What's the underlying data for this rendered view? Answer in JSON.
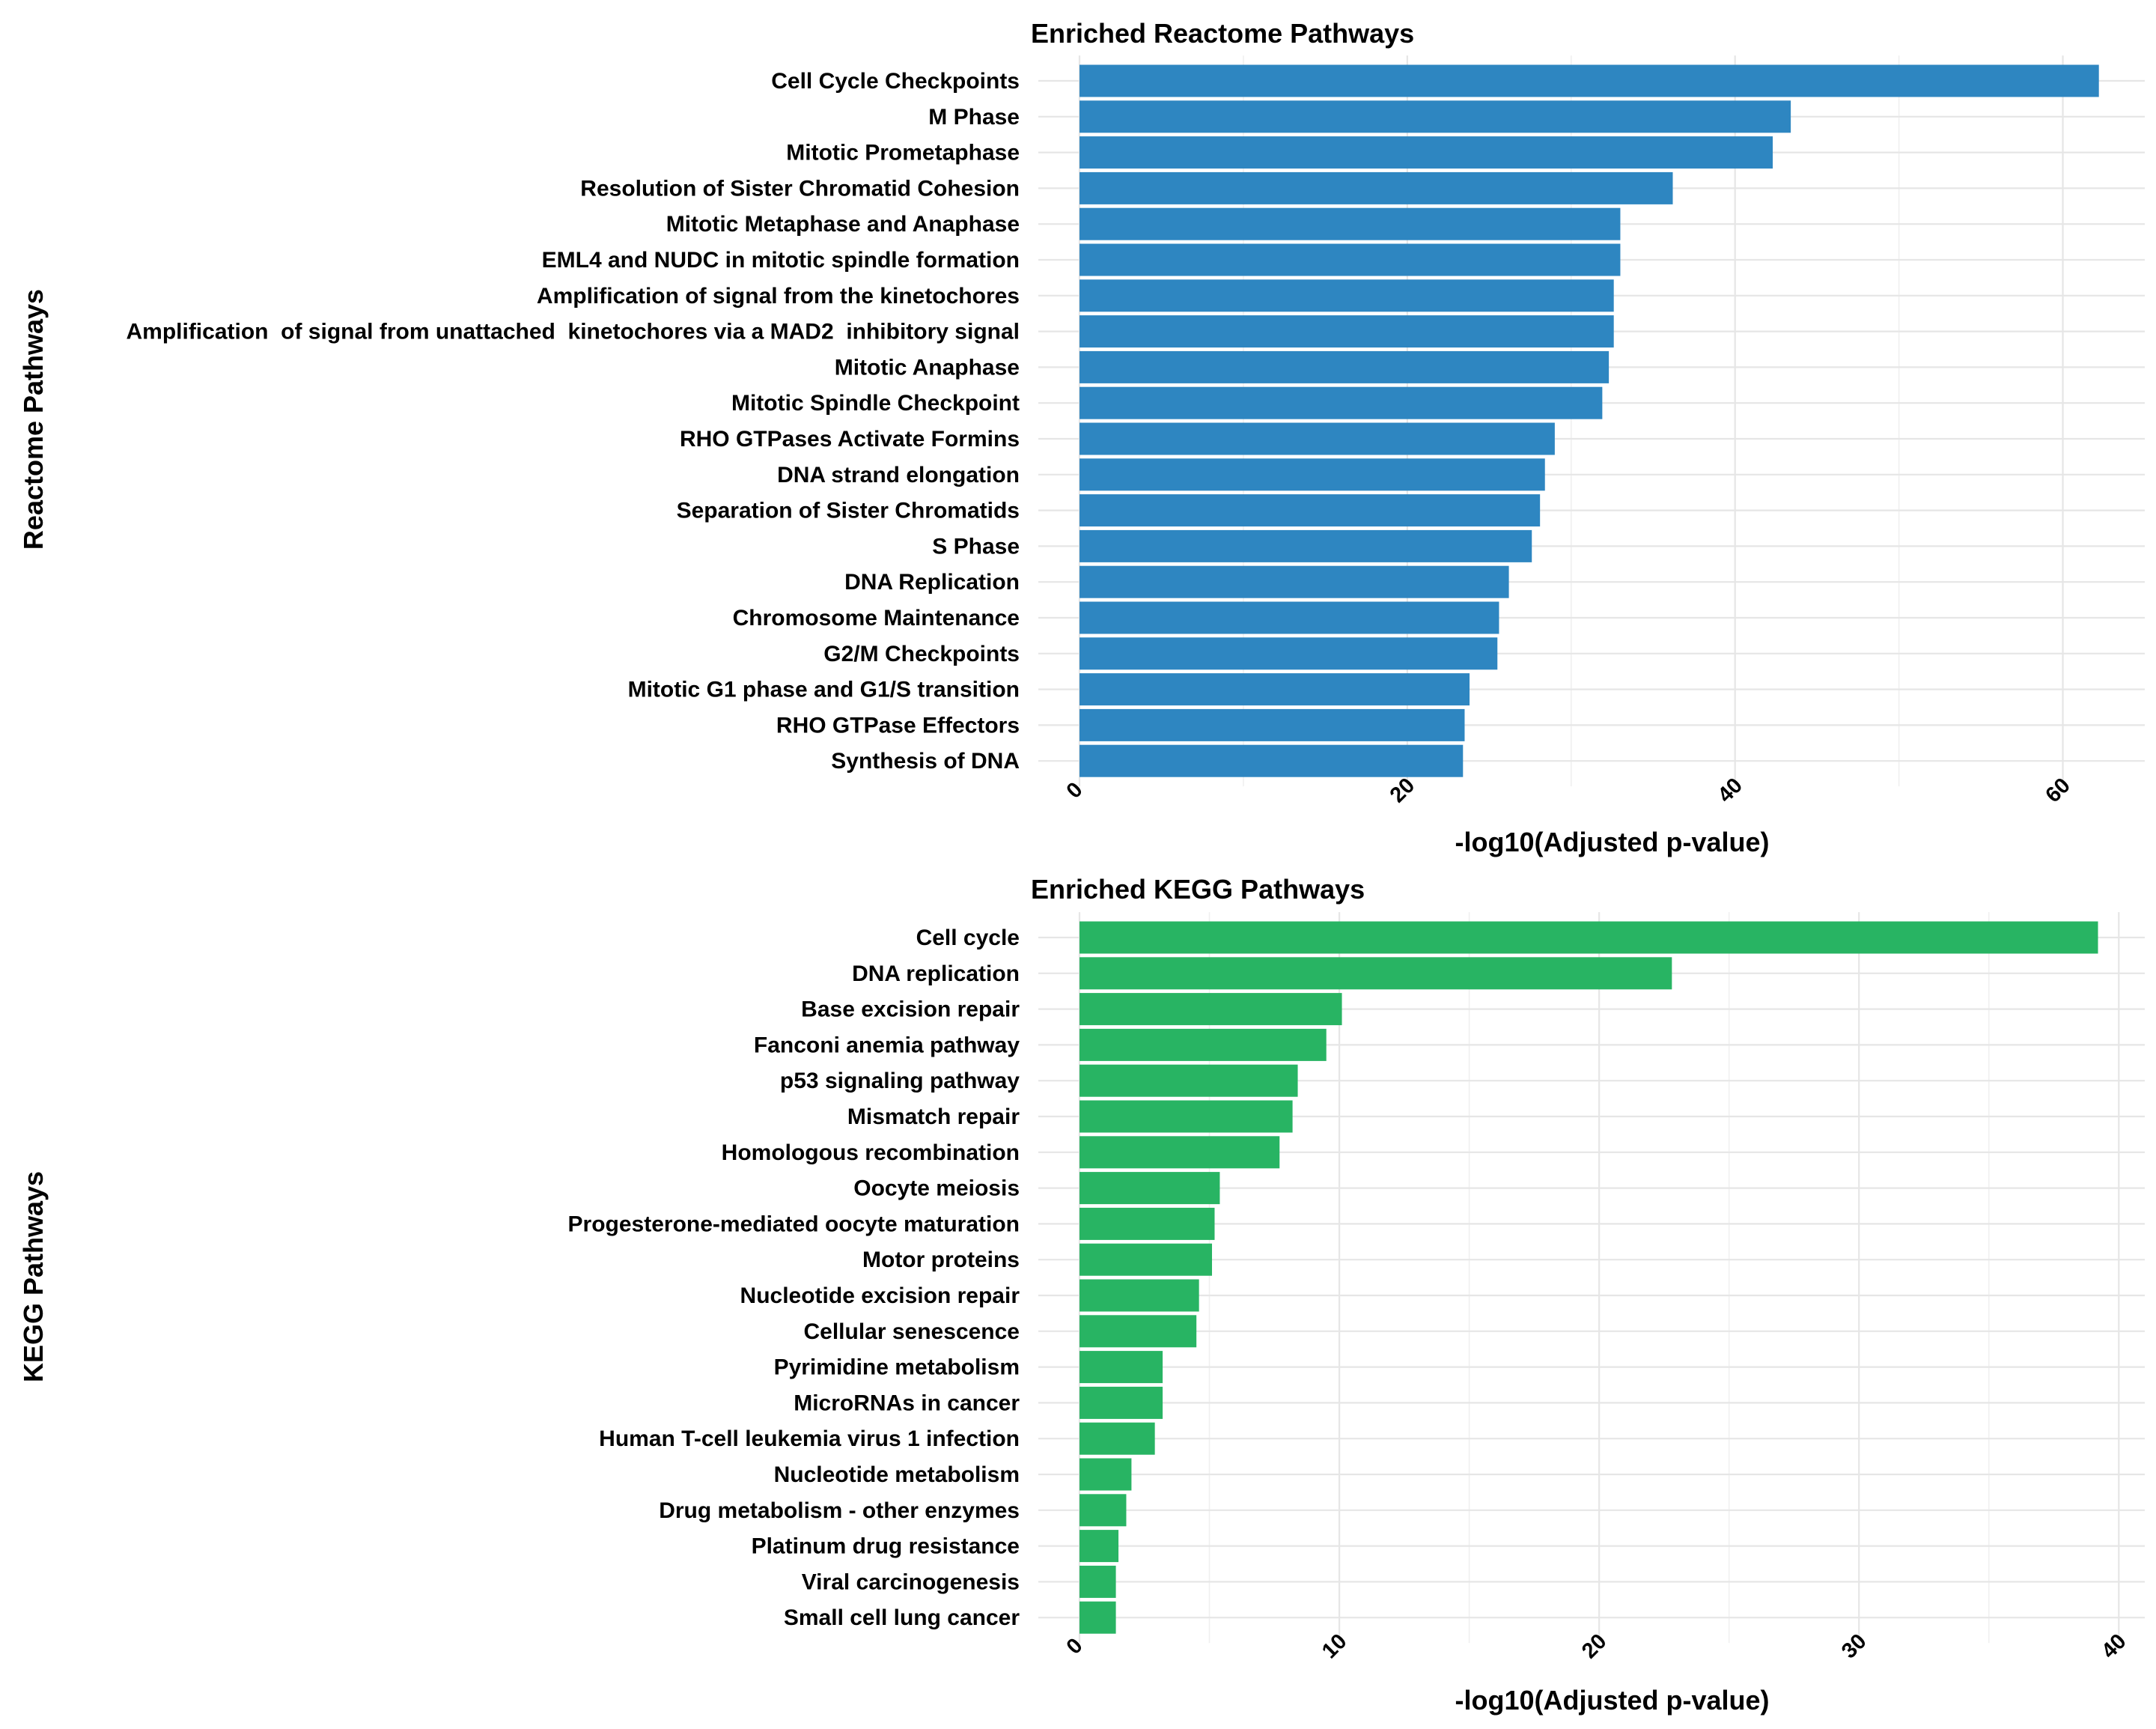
{
  "chart_data": [
    {
      "type": "bar",
      "orientation": "horizontal",
      "title": "Enriched Reactome Pathways",
      "xlabel": "-log10(Adjusted p-value)",
      "ylabel": "Reactome Pathways",
      "xlim": [
        0,
        65
      ],
      "xticks": [
        0,
        20,
        40,
        60
      ],
      "grid": true,
      "color": "#2e86c1",
      "categories": [
        "Cell Cycle Checkpoints",
        "M Phase",
        "Mitotic Prometaphase",
        "Resolution of Sister Chromatid Cohesion",
        "Mitotic Metaphase and Anaphase",
        "EML4 and NUDC in mitotic spindle formation",
        "Amplification of signal from the kinetochores",
        "Amplification  of signal from unattached  kinetochores via a MAD2  inhibitory signal",
        "Mitotic Anaphase",
        "Mitotic Spindle Checkpoint",
        "RHO GTPases Activate Formins",
        "DNA strand elongation",
        "Separation of Sister Chromatids",
        "S Phase",
        "DNA Replication",
        "Chromosome Maintenance",
        "G2/M Checkpoints",
        "Mitotic G1 phase and G1/S transition",
        "RHO GTPase Effectors",
        "Synthesis of DNA"
      ],
      "values": [
        62.2,
        43.4,
        42.3,
        36.2,
        33.0,
        33.0,
        32.6,
        32.6,
        32.3,
        31.9,
        29.0,
        28.4,
        28.1,
        27.6,
        26.2,
        25.6,
        25.5,
        23.8,
        23.5,
        23.4
      ]
    },
    {
      "type": "bar",
      "orientation": "horizontal",
      "title": "Enriched KEGG Pathways",
      "xlabel": "-log10(Adjusted p-value)",
      "ylabel": "KEGG Pathways",
      "xlim": [
        0,
        41
      ],
      "xticks": [
        0,
        10,
        20,
        30,
        40
      ],
      "grid": true,
      "color": "#28b463",
      "categories": [
        "Cell cycle",
        "DNA replication",
        "Base excision repair",
        "Fanconi anemia pathway",
        "p53 signaling pathway",
        "Mismatch repair",
        "Homologous recombination",
        "Oocyte meiosis",
        "Progesterone-mediated oocyte maturation",
        "Motor proteins",
        "Nucleotide excision repair",
        "Cellular senescence",
        "Pyrimidine metabolism",
        "MicroRNAs in cancer",
        "Human T-cell leukemia virus 1 infection",
        "Nucleotide metabolism",
        "Drug metabolism - other enzymes",
        "Platinum drug resistance",
        "Viral carcinogenesis",
        "Small cell lung cancer"
      ],
      "values": [
        39.2,
        22.8,
        10.1,
        9.5,
        8.4,
        8.2,
        7.7,
        5.4,
        5.2,
        5.1,
        4.6,
        4.5,
        3.2,
        3.2,
        2.9,
        2.0,
        1.8,
        1.5,
        1.4,
        1.4
      ]
    }
  ]
}
